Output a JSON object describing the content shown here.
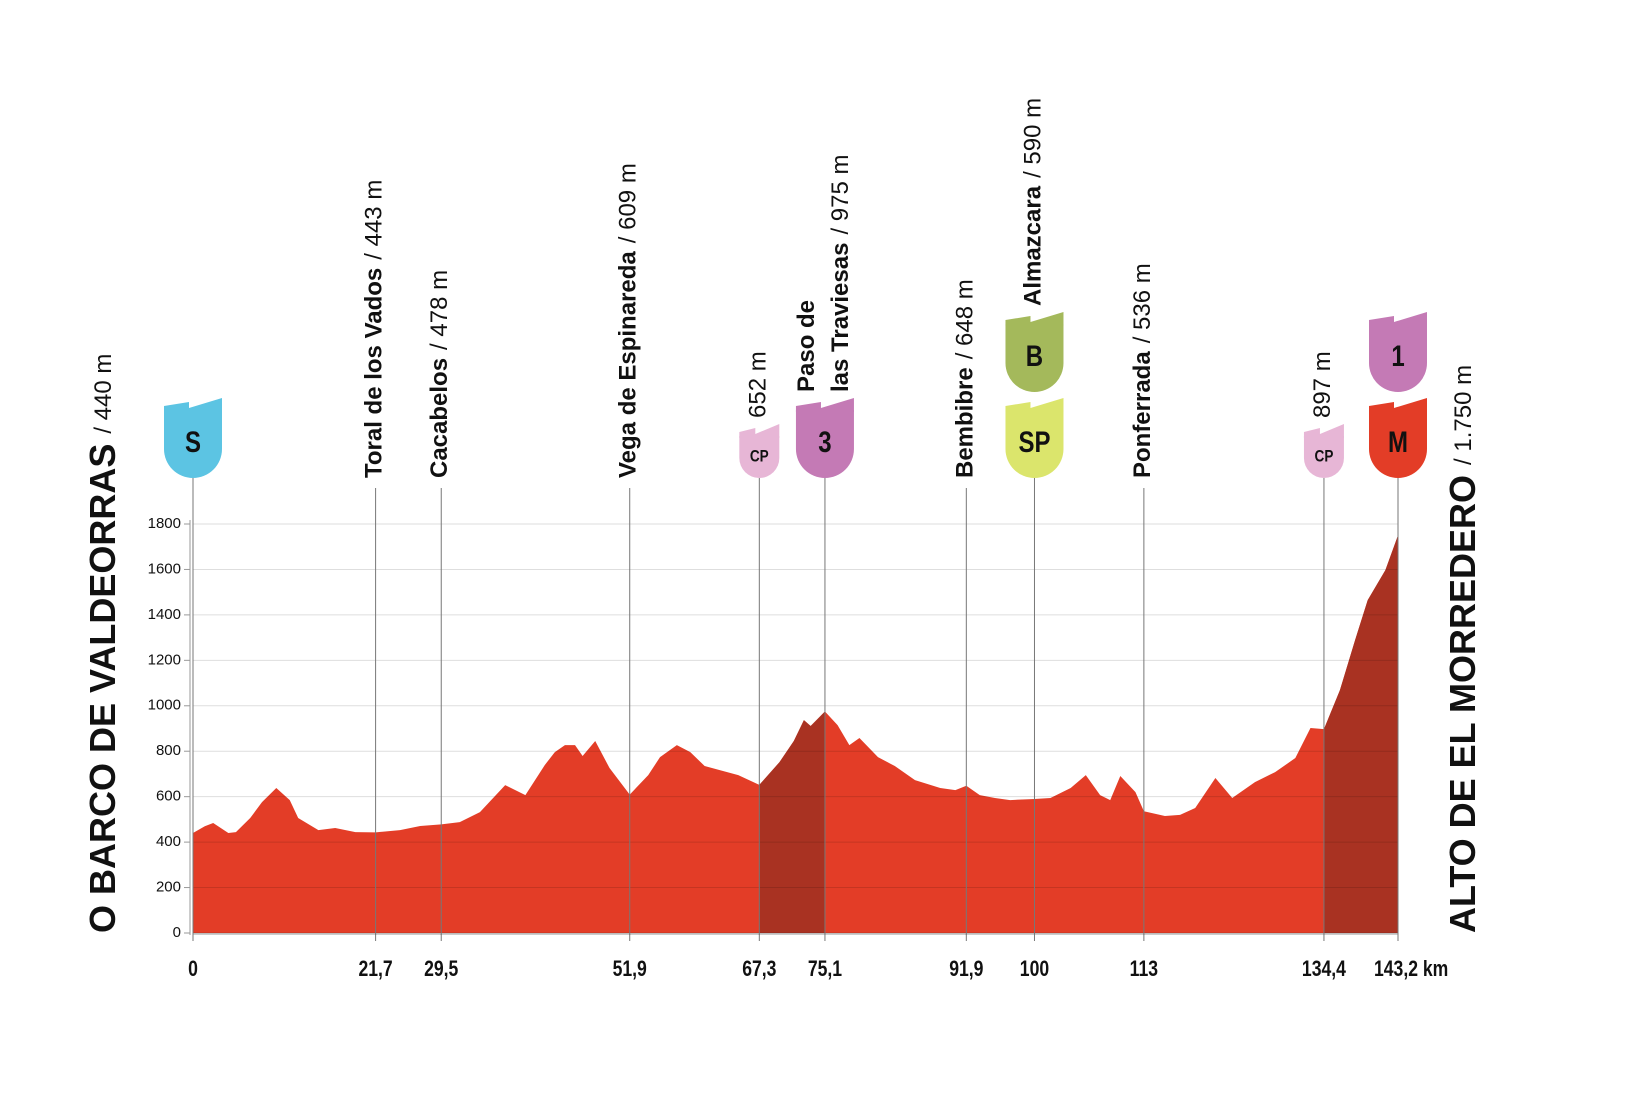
{
  "chart_data": {
    "type": "area",
    "x": [
      0,
      1.4,
      2.4,
      4.2,
      5.1,
      6.8,
      8.2,
      9.9,
      11.5,
      12.5,
      14.9,
      16.9,
      19.3,
      21.7,
      24.6,
      27.0,
      29.5,
      31.7,
      34.1,
      37.1,
      39.5,
      41.8,
      43.0,
      44.2,
      45.4,
      46.3,
      47.8,
      49.5,
      51.9,
      54.1,
      55.5,
      57.5,
      59.1,
      60.8,
      62.6,
      64.8,
      67.3,
      69.7,
      71.4,
      72.6,
      73.4,
      75.1,
      76.6,
      78.0,
      79.2,
      81.4,
      83.4,
      85.8,
      88.8,
      90.6,
      91.9,
      93.5,
      95.3,
      97.1,
      100,
      101.9,
      104.3,
      106.1,
      107.8,
      109.0,
      110.2,
      112.0,
      113,
      115.5,
      117.3,
      119.1,
      121.5,
      123.5,
      126.2,
      128.6,
      131.0,
      132.8,
      134.4,
      136.3,
      138.1,
      139.6,
      141.7,
      143.2
    ],
    "values": [
      440,
      470,
      484,
      440,
      444,
      506,
      576,
      638,
      585,
      506,
      453,
      462,
      444,
      443,
      453,
      471,
      478,
      488,
      532,
      651,
      607,
      739,
      796,
      827,
      827,
      779,
      845,
      726,
      609,
      695,
      774,
      827,
      796,
      735,
      717,
      695,
      652,
      752,
      845,
      937,
      911,
      975,
      915,
      827,
      858,
      774,
      735,
      673,
      638,
      629,
      648,
      607,
      594,
      585,
      590,
      594,
      638,
      695,
      607,
      585,
      691,
      620,
      536,
      515,
      520,
      550,
      682,
      594,
      664,
      708,
      770,
      902,
      897,
      1069,
      1289,
      1465,
      1597,
      1750
    ],
    "color": "#e33d27",
    "climb_color": "#a93222",
    "climbs": [
      [
        67.3,
        75.1
      ],
      [
        134.4,
        143.2
      ]
    ],
    "xlim": [
      0,
      143.2
    ],
    "ylim": [
      0,
      1800
    ],
    "xticks": [
      0,
      {
        "value": 21.7,
        "label": "21,7"
      },
      {
        "value": 29.5,
        "label": "29,5"
      },
      {
        "value": 51.9,
        "label": "51,9"
      },
      {
        "value": 67.3,
        "label": "67,3"
      },
      {
        "value": 75.1,
        "label": "75,1"
      },
      {
        "value": 91.9,
        "label": "91,9"
      },
      100,
      113,
      {
        "value": 134.4,
        "label": "134,4"
      },
      {
        "value": 143.2,
        "label": "143,2 km"
      }
    ],
    "yticks": [
      0,
      200,
      400,
      600,
      800,
      1000,
      1200,
      1400,
      1600,
      1800
    ],
    "start": {
      "name": "O BARCO DE VALDEORRAS",
      "alt": "/ 440 m"
    },
    "finish": {
      "name": "ALTO DE EL MORREDERO",
      "alt": "/ 1.750 m"
    },
    "waypoints": [
      {
        "km": 21.7,
        "lines": [
          "Toral de los Vados"
        ],
        "alt": "/ 443 m"
      },
      {
        "km": 29.5,
        "lines": [
          "Cacabelos"
        ],
        "alt": "/ 478 m"
      },
      {
        "km": 51.9,
        "lines": [
          "Vega de Espinareda"
        ],
        "alt": "/ 609 m"
      },
      {
        "km": 67.3,
        "lines": [],
        "alt": "652 m"
      },
      {
        "km": 75.1,
        "lines": [
          "Paso de",
          "las Traviesas"
        ],
        "alt": "/ 975 m"
      },
      {
        "km": 91.9,
        "lines": [
          "Bembibre"
        ],
        "alt": "/ 648 m"
      },
      {
        "km": 100,
        "lines": [
          "Almazcara"
        ],
        "alt": "/ 590 m"
      },
      {
        "km": 113,
        "lines": [
          "Ponferrada"
        ],
        "alt": "/ 536 m"
      },
      {
        "km": 134.4,
        "lines": [],
        "alt": "897 m"
      }
    ],
    "icons": [
      {
        "km": 0,
        "label": "S",
        "color": "#5cc4e3",
        "text_color": "#ffffff",
        "small": false
      },
      {
        "km": 67.3,
        "label": "CP",
        "color": "#e7b6d6",
        "text_color": "#222222",
        "small": true
      },
      {
        "km": 75.1,
        "label": "3",
        "color": "#c47ab5",
        "text_color": "#ffffff",
        "small": false
      },
      {
        "km": 100,
        "label": "SP",
        "color": "#dbe56c",
        "text_color": "#111111",
        "small": false
      },
      {
        "km": 100,
        "label": "B",
        "color": "#a4b95b",
        "text_color": "#ffffff",
        "small": false
      },
      {
        "km": 134.4,
        "label": "CP",
        "color": "#e7b6d6",
        "text_color": "#222222",
        "small": true
      },
      {
        "km": 143.2,
        "label": "M",
        "color": "#e33d27",
        "text_color": "#ffffff",
        "small": false
      },
      {
        "km": 143.2,
        "label": "1",
        "color": "#c47ab5",
        "text_color": "#ffffff",
        "small": false
      }
    ]
  }
}
